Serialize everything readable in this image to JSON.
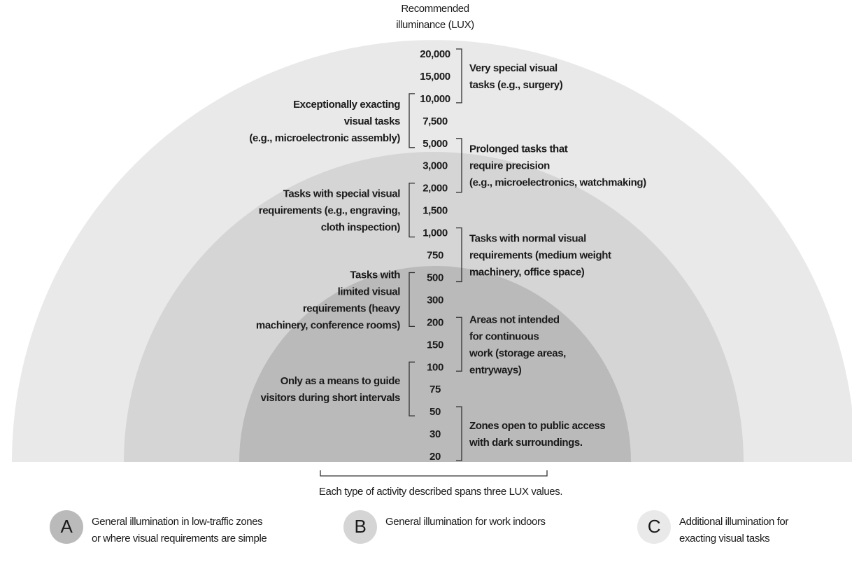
{
  "header": {
    "lines": [
      "Recommended",
      "illuminance (LUX)"
    ]
  },
  "lux_values": [
    "20,000",
    "15,000",
    "10,000",
    "7,500",
    "5,000",
    "3,000",
    "2,000",
    "1,500",
    "1,000",
    "750",
    "500",
    "300",
    "200",
    "150",
    "100",
    "75",
    "50",
    "30",
    "20"
  ],
  "right_labels": [
    {
      "lines": [
        "Very special visual",
        "tasks (e.g., surgery)"
      ]
    },
    {
      "lines": [
        "Prolonged tasks that",
        "require precision",
        "(e.g., microelectronics, watchmaking)"
      ]
    },
    {
      "lines": [
        "Tasks with normal visual",
        "requirements (medium weight",
        "machinery, office space)"
      ]
    },
    {
      "lines": [
        "Areas not intended",
        "for continuous",
        "work (storage areas,",
        "entryways)"
      ]
    },
    {
      "lines": [
        "Zones open to public access",
        "with dark surroundings."
      ]
    }
  ],
  "left_labels": [
    {
      "lines": [
        "Exceptionally exacting",
        "visual tasks",
        "(e.g., microelectronic assembly)"
      ]
    },
    {
      "lines": [
        "Tasks with special visual",
        "requirements (e.g., engraving,",
        "cloth inspection)"
      ]
    },
    {
      "lines": [
        "Tasks with",
        "limited visual",
        "requirements (heavy",
        "machinery, conference rooms)"
      ]
    },
    {
      "lines": [
        "Only as a means to guide",
        "visitors during short intervals"
      ]
    }
  ],
  "footnote": "Each type of activity described spans three LUX values.",
  "legend": [
    {
      "letter": "A",
      "lines": [
        "General illumination in low-traffic zones",
        "or where visual requirements are simple"
      ]
    },
    {
      "letter": "B",
      "lines": [
        "General illumination for work indoors"
      ]
    },
    {
      "letter": "C",
      "lines": [
        "Additional illumination for",
        "exacting visual  tasks"
      ]
    }
  ]
}
